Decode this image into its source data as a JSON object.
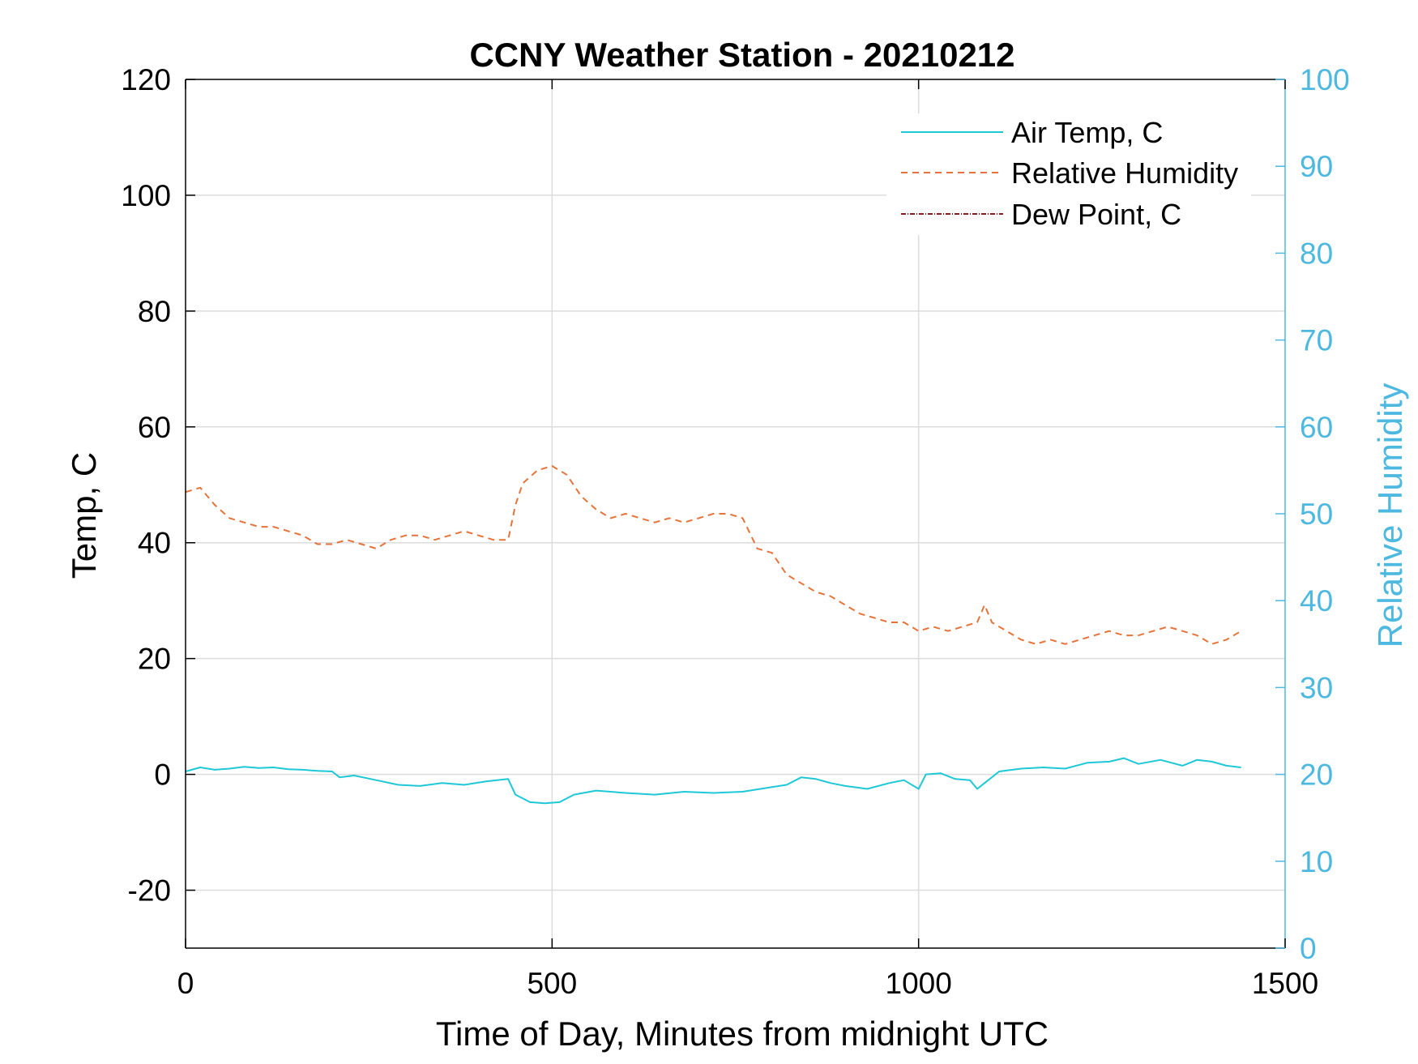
{
  "chart_data": {
    "type": "line",
    "title": "CCNY Weather Station - 20210212",
    "xlabel": "Time of Day, Minutes from midnight UTC",
    "ylabel_left": "Temp, C",
    "ylabel_right": "Relative Humidity",
    "xlim": [
      0,
      1500
    ],
    "ylim_left": [
      -30,
      120
    ],
    "ylim_right": [
      0,
      100
    ],
    "xticks": [
      0,
      500,
      1000,
      1500
    ],
    "yticks_left": [
      -20,
      0,
      20,
      40,
      60,
      80,
      100,
      120
    ],
    "yticks_right": [
      0,
      10,
      20,
      30,
      40,
      50,
      60,
      70,
      80,
      90,
      100
    ],
    "grid": true,
    "legend_position": "top-right",
    "colors": {
      "air_temp": "#1ec8d6",
      "relative_humidity": "#e5733a",
      "dew_point": "#8b1a1a",
      "right_axis": "#4db8e0",
      "axis": "#000000"
    },
    "series": [
      {
        "name": "Air Temp, C",
        "axis": "left",
        "style": "solid",
        "x": [
          0,
          20,
          40,
          60,
          80,
          100,
          120,
          140,
          160,
          180,
          200,
          210,
          230,
          260,
          290,
          320,
          350,
          380,
          410,
          440,
          450,
          470,
          490,
          510,
          530,
          560,
          600,
          640,
          680,
          720,
          760,
          800,
          820,
          840,
          860,
          880,
          900,
          930,
          960,
          980,
          1000,
          1010,
          1030,
          1050,
          1070,
          1080,
          1090,
          1110,
          1140,
          1170,
          1200,
          1230,
          1260,
          1280,
          1300,
          1330,
          1360,
          1380,
          1400,
          1420,
          1440
        ],
        "y": [
          0.5,
          1.2,
          0.8,
          1.0,
          1.3,
          1.1,
          1.2,
          0.9,
          0.8,
          0.6,
          0.5,
          -0.5,
          -0.2,
          -1.0,
          -1.8,
          -2.0,
          -1.5,
          -1.8,
          -1.2,
          -0.8,
          -3.5,
          -4.8,
          -5.0,
          -4.8,
          -3.5,
          -2.8,
          -3.2,
          -3.5,
          -3.0,
          -3.2,
          -3.0,
          -2.2,
          -1.8,
          -0.5,
          -0.8,
          -1.5,
          -2.0,
          -2.5,
          -1.5,
          -1.0,
          -2.5,
          0.0,
          0.2,
          -0.8,
          -1.0,
          -2.5,
          -1.5,
          0.5,
          1.0,
          1.2,
          1.0,
          2.0,
          2.2,
          2.8,
          1.8,
          2.5,
          1.5,
          2.5,
          2.2,
          1.5,
          1.2
        ]
      },
      {
        "name": "Relative Humidity",
        "axis": "right",
        "style": "dashed",
        "x": [
          0,
          20,
          40,
          60,
          80,
          100,
          120,
          140,
          160,
          180,
          200,
          220,
          240,
          260,
          280,
          300,
          320,
          340,
          360,
          380,
          400,
          420,
          440,
          450,
          460,
          480,
          500,
          520,
          540,
          560,
          580,
          600,
          620,
          640,
          660,
          680,
          700,
          720,
          740,
          760,
          780,
          800,
          820,
          840,
          860,
          880,
          900,
          920,
          940,
          960,
          980,
          1000,
          1020,
          1040,
          1060,
          1080,
          1090,
          1100,
          1120,
          1140,
          1160,
          1180,
          1200,
          1220,
          1240,
          1260,
          1280,
          1300,
          1320,
          1340,
          1360,
          1380,
          1400,
          1420,
          1440
        ],
        "y": [
          52.5,
          53.0,
          51.0,
          49.5,
          49.0,
          48.5,
          48.5,
          48.0,
          47.5,
          46.5,
          46.5,
          47.0,
          46.5,
          46.0,
          47.0,
          47.5,
          47.5,
          47.0,
          47.5,
          48.0,
          47.5,
          47.0,
          47.0,
          51.0,
          53.5,
          55.0,
          55.5,
          54.5,
          52.0,
          50.5,
          49.5,
          50.0,
          49.5,
          49.0,
          49.5,
          49.0,
          49.5,
          50.0,
          50.0,
          49.5,
          46.0,
          45.5,
          43.0,
          42.0,
          41.0,
          40.5,
          39.5,
          38.5,
          38.0,
          37.5,
          37.5,
          36.5,
          37.0,
          36.5,
          37.0,
          37.5,
          39.5,
          37.5,
          36.5,
          35.5,
          35.0,
          35.5,
          35.0,
          35.5,
          36.0,
          36.5,
          36.0,
          36.0,
          36.5,
          37.0,
          36.5,
          36.0,
          35.0,
          35.5,
          36.5
        ]
      },
      {
        "name": "Dew Point, C",
        "axis": "left",
        "style": "dash-dot",
        "x": [],
        "y": []
      }
    ]
  }
}
